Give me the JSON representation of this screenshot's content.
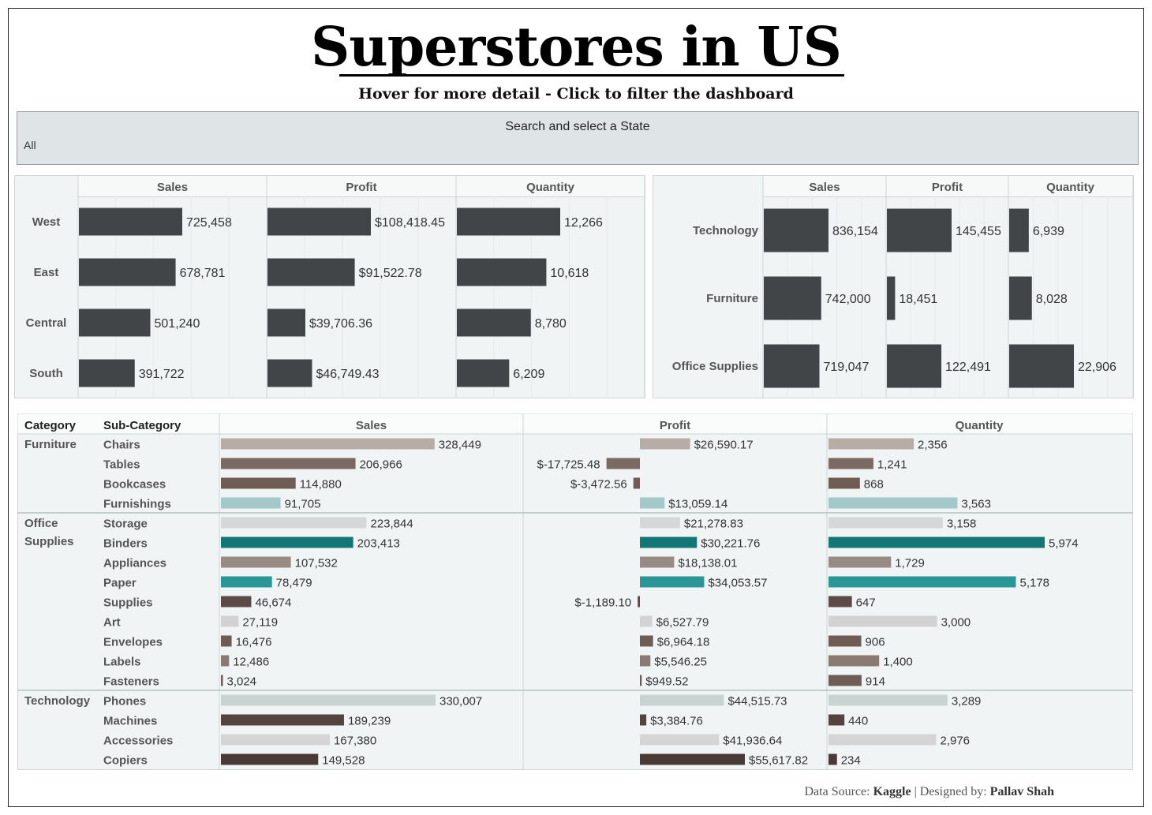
{
  "header": {
    "title": "Superstores in US",
    "subtitle": "Hover for more detail - Click to filter the dashboard"
  },
  "filter": {
    "label": "Search and select a State",
    "value": "All"
  },
  "footer": {
    "source_prefix": "Data Source:",
    "source": "Kaggle",
    "separator": "|",
    "designer_prefix": "Designed by:",
    "designer": "Pallav Shah"
  },
  "colors": {
    "bar_dark": "#414548",
    "panel_bg": "#f1f4f5",
    "grid": "#d9dfe1",
    "chairs": "#b7aca6",
    "tables": "#7a6a63",
    "bookcases": "#6f5c55",
    "furnishings": "#a3c8ca",
    "storage": "#d5d8d8",
    "binders": "#137875",
    "appliances": "#988a84",
    "paper": "#2a9695",
    "supplies": "#5b4a45",
    "art": "#d2d2d2",
    "envelopes": "#6f5c55",
    "labels": "#8b7a74",
    "fasteners": "#6f5c55",
    "phones": "#c9d4d2",
    "machines": "#54433e",
    "accessories": "#d5d5d5",
    "copiers": "#4a3a36"
  },
  "chart_data": [
    {
      "type": "bar",
      "columns": [
        "Sales",
        "Profit",
        "Quantity"
      ],
      "categories": [
        "West",
        "East",
        "Central",
        "South"
      ],
      "series": [
        {
          "name": "Sales",
          "values": [
            725458,
            678781,
            501240,
            391722
          ],
          "labels": [
            "725,458",
            "678,781",
            "501,240",
            "391,722"
          ]
        },
        {
          "name": "Profit",
          "values": [
            108418.45,
            91522.78,
            39706.36,
            46749.43
          ],
          "labels": [
            "$108,418.45",
            "$91,522.78",
            "$39,706.36",
            "$46,749.43"
          ]
        },
        {
          "name": "Quantity",
          "values": [
            12266,
            10618,
            8780,
            6209
          ],
          "labels": [
            "12,266",
            "10,618",
            "8,780",
            "6,209"
          ]
        }
      ]
    },
    {
      "type": "bar",
      "columns": [
        "Sales",
        "Profit",
        "Quantity"
      ],
      "categories": [
        "Technology",
        "Furniture",
        "Office Supplies"
      ],
      "series": [
        {
          "name": "Sales",
          "values": [
            836154,
            742000,
            719047
          ],
          "labels": [
            "836,154",
            "742,000",
            "719,047"
          ]
        },
        {
          "name": "Profit",
          "values": [
            145455,
            18451,
            122491
          ],
          "labels": [
            "145,455",
            "18,451",
            "122,491"
          ]
        },
        {
          "name": "Quantity",
          "values": [
            6939,
            8028,
            22906
          ],
          "labels": [
            "6,939",
            "8,028",
            "22,906"
          ]
        }
      ]
    },
    {
      "type": "bar",
      "header_category": "Category",
      "header_subcategory": "Sub-Category",
      "columns": [
        "Sales",
        "Profit",
        "Quantity"
      ],
      "groups": [
        {
          "category": "Furniture",
          "rows": [
            {
              "name": "Chairs",
              "color": "chairs",
              "sales": 328449,
              "sales_label": "328,449",
              "profit": 26590.17,
              "profit_label": "$26,590.17",
              "quantity": 2356,
              "quantity_label": "2,356"
            },
            {
              "name": "Tables",
              "color": "tables",
              "sales": 206966,
              "sales_label": "206,966",
              "profit": -17725.48,
              "profit_label": "$-17,725.48",
              "quantity": 1241,
              "quantity_label": "1,241"
            },
            {
              "name": "Bookcases",
              "color": "bookcases",
              "sales": 114880,
              "sales_label": "114,880",
              "profit": -3472.56,
              "profit_label": "$-3,472.56",
              "quantity": 868,
              "quantity_label": "868"
            },
            {
              "name": "Furnishings",
              "color": "furnishings",
              "sales": 91705,
              "sales_label": "91,705",
              "profit": 13059.14,
              "profit_label": "$13,059.14",
              "quantity": 3563,
              "quantity_label": "3,563"
            }
          ]
        },
        {
          "category": "Office Supplies",
          "rows": [
            {
              "name": "Storage",
              "color": "storage",
              "sales": 223844,
              "sales_label": "223,844",
              "profit": 21278.83,
              "profit_label": "$21,278.83",
              "quantity": 3158,
              "quantity_label": "3,158"
            },
            {
              "name": "Binders",
              "color": "binders",
              "sales": 203413,
              "sales_label": "203,413",
              "profit": 30221.76,
              "profit_label": "$30,221.76",
              "quantity": 5974,
              "quantity_label": "5,974"
            },
            {
              "name": "Appliances",
              "color": "appliances",
              "sales": 107532,
              "sales_label": "107,532",
              "profit": 18138.01,
              "profit_label": "$18,138.01",
              "quantity": 1729,
              "quantity_label": "1,729"
            },
            {
              "name": "Paper",
              "color": "paper",
              "sales": 78479,
              "sales_label": "78,479",
              "profit": 34053.57,
              "profit_label": "$34,053.57",
              "quantity": 5178,
              "quantity_label": "5,178"
            },
            {
              "name": "Supplies",
              "color": "supplies",
              "sales": 46674,
              "sales_label": "46,674",
              "profit": -1189.1,
              "profit_label": "$-1,189.10",
              "quantity": 647,
              "quantity_label": "647"
            },
            {
              "name": "Art",
              "color": "art",
              "sales": 27119,
              "sales_label": "27,119",
              "profit": 6527.79,
              "profit_label": "$6,527.79",
              "quantity": 3000,
              "quantity_label": "3,000"
            },
            {
              "name": "Envelopes",
              "color": "envelopes",
              "sales": 16476,
              "sales_label": "16,476",
              "profit": 6964.18,
              "profit_label": "$6,964.18",
              "quantity": 906,
              "quantity_label": "906"
            },
            {
              "name": "Labels",
              "color": "labels",
              "sales": 12486,
              "sales_label": "12,486",
              "profit": 5546.25,
              "profit_label": "$5,546.25",
              "quantity": 1400,
              "quantity_label": "1,400"
            },
            {
              "name": "Fasteners",
              "color": "fasteners",
              "sales": 3024,
              "sales_label": "3,024",
              "profit": 949.52,
              "profit_label": "$949.52",
              "quantity": 914,
              "quantity_label": "914"
            }
          ]
        },
        {
          "category": "Technology",
          "rows": [
            {
              "name": "Phones",
              "color": "phones",
              "sales": 330007,
              "sales_label": "330,007",
              "profit": 44515.73,
              "profit_label": "$44,515.73",
              "quantity": 3289,
              "quantity_label": "3,289"
            },
            {
              "name": "Machines",
              "color": "machines",
              "sales": 189239,
              "sales_label": "189,239",
              "profit": 3384.76,
              "profit_label": "$3,384.76",
              "quantity": 440,
              "quantity_label": "440"
            },
            {
              "name": "Accessories",
              "color": "accessories",
              "sales": 167380,
              "sales_label": "167,380",
              "profit": 41936.64,
              "profit_label": "$41,936.64",
              "quantity": 2976,
              "quantity_label": "2,976"
            },
            {
              "name": "Copiers",
              "color": "copiers",
              "sales": 149528,
              "sales_label": "149,528",
              "profit": 55617.82,
              "profit_label": "$55,617.82",
              "quantity": 234,
              "quantity_label": "234"
            }
          ]
        }
      ]
    }
  ]
}
